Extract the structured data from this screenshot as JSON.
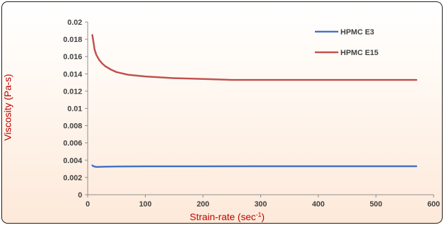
{
  "chart_data": {
    "type": "line",
    "title": "",
    "xlabel": "Strain-rate (sec",
    "xlabel_sup": "-1",
    "xlabel_end": ")",
    "ylabel": "Viscosity (Pa-s)",
    "xlim": [
      0,
      600
    ],
    "ylim": [
      0,
      0.02
    ],
    "x_ticks": [
      0,
      100,
      200,
      300,
      400,
      500,
      600
    ],
    "y_ticks": [
      0,
      0.002,
      0.004,
      0.006,
      0.008,
      0.01,
      0.012,
      0.014,
      0.016,
      0.018,
      0.02
    ],
    "x_tick_labels": [
      "0",
      "100",
      "200",
      "300",
      "400",
      "500",
      "600"
    ],
    "y_tick_labels": [
      "0",
      "0.002",
      "0.004",
      "0.006",
      "0.008",
      "0.01",
      "0.012",
      "0.014",
      "0.016",
      "0.018",
      "0.02"
    ],
    "grid": false,
    "legend_position": "top-right",
    "series": [
      {
        "name": "HPMC E3",
        "color": "#4472c4",
        "x": [
          8,
          10,
          15,
          20,
          30,
          50,
          100,
          200,
          300,
          400,
          500,
          570
        ],
        "y": [
          0.0034,
          0.0033,
          0.00322,
          0.00323,
          0.00325,
          0.00327,
          0.00328,
          0.00329,
          0.0033,
          0.0033,
          0.0033,
          0.0033
        ]
      },
      {
        "name": "HPMC E15",
        "color": "#c0504d",
        "x": [
          8,
          10,
          12,
          15,
          20,
          25,
          30,
          40,
          50,
          70,
          100,
          150,
          200,
          250,
          300,
          350,
          400,
          450,
          500,
          570
        ],
        "y": [
          0.0185,
          0.0177,
          0.0168,
          0.0162,
          0.0156,
          0.0152,
          0.0149,
          0.0145,
          0.0142,
          0.0139,
          0.0137,
          0.0135,
          0.0134,
          0.0133,
          0.0133,
          0.0133,
          0.0133,
          0.0133,
          0.0133,
          0.0133
        ]
      }
    ]
  }
}
